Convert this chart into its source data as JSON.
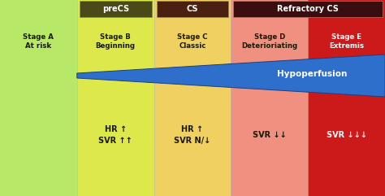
{
  "columns": [
    {
      "label": "Stage A\nAt risk",
      "bg": "#b8e868",
      "text_color": "#1a1a00"
    },
    {
      "label": "Stage B\nBeginning",
      "bg": "#dde84a",
      "text_color": "#1a1a00"
    },
    {
      "label": "Stage C\nClassic",
      "bg": "#f0d060",
      "text_color": "#1a1a00"
    },
    {
      "label": "Stage D\nDeterioriating",
      "bg": "#f09080",
      "text_color": "#1a1a00"
    },
    {
      "label": "Stage E\nExtremis",
      "bg": "#cc1a1a",
      "text_color": "#ffffff"
    }
  ],
  "precs_header": "preCS",
  "precs_header_bg": "#4a4a18",
  "cs_header": "CS",
  "cs_header_bg": "#4a2010",
  "ref_header": "Refractory CS",
  "ref_header_bg": "#3a0e0e",
  "hypoperfusion_text": "Hypoperfusion",
  "hypoperfusion_color": "#2e6fcc",
  "bottom_texts": [
    "",
    "HR ↑\nSVR ↑↑",
    "HR ↑\nSVR N/↓",
    "SVR ↓↓",
    "SVR ↓↓↓"
  ],
  "bottom_text_colors": [
    "#1a1a00",
    "#1a1a00",
    "#1a1a00",
    "#1a1a00",
    "#ffffff"
  ]
}
